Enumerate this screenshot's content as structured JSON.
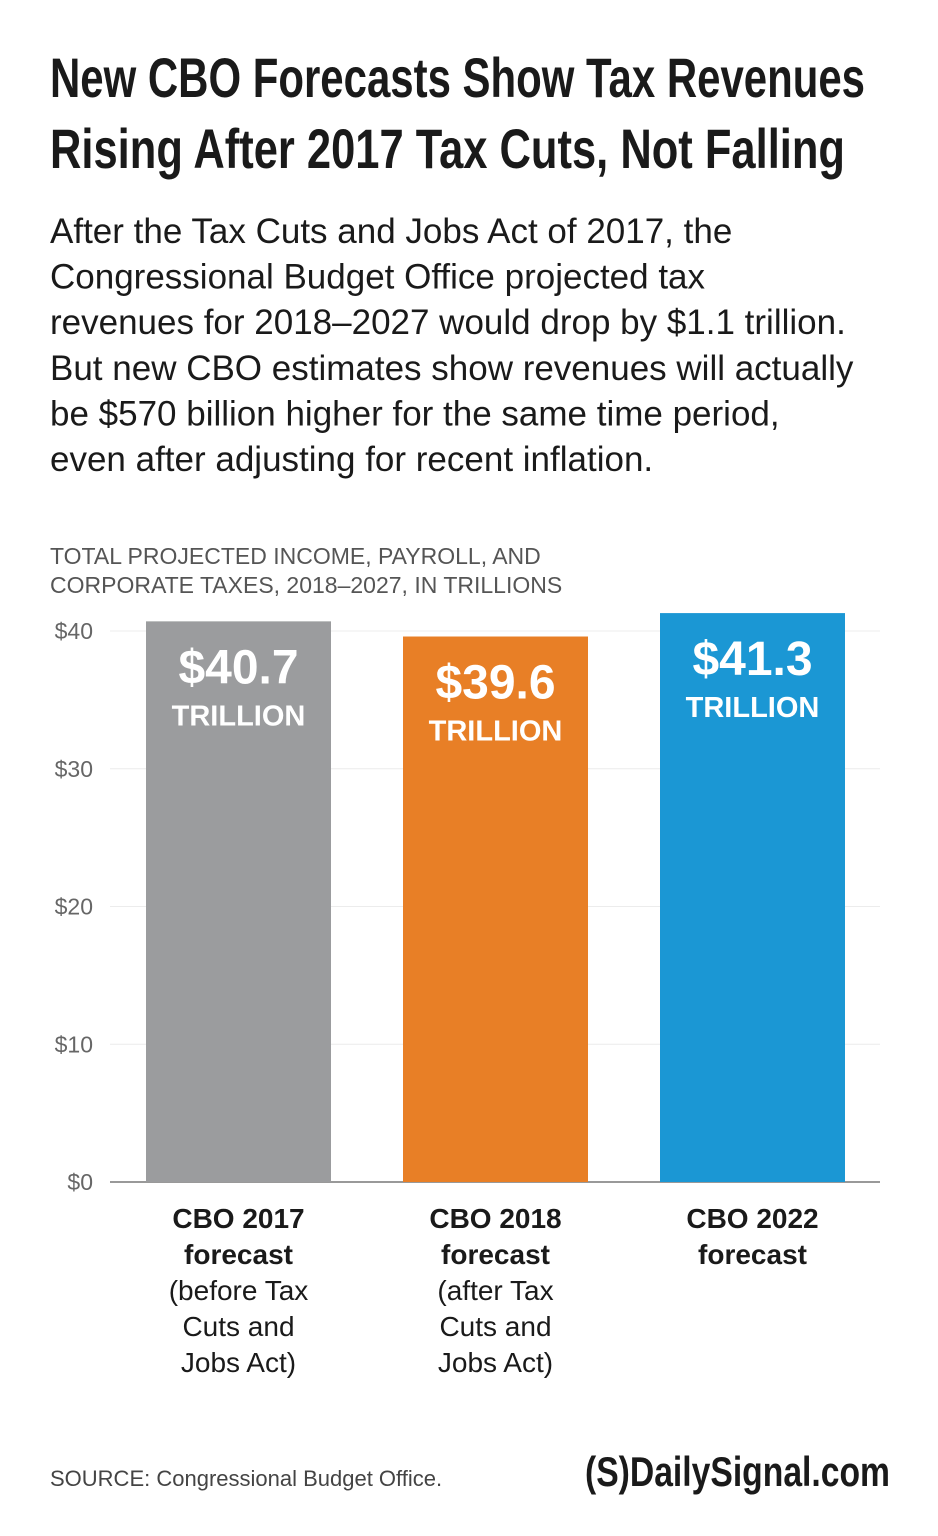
{
  "chart_data": {
    "type": "bar",
    "title": [
      "New CBO Forecasts Show Tax Revenues",
      "Rising After 2017 Tax Cuts, Not Falling"
    ],
    "subtitle": [
      "After the Tax Cuts and Jobs Act of 2017, the",
      "Congressional Budget Office projected tax",
      "revenues for 2018–2027 would drop by $1.1 trillion.",
      "But new CBO estimates show revenues will actually",
      "be $570 billion higher for the same time period,",
      "even after adjusting for recent inflation."
    ],
    "y_axis_label": [
      "TOTAL PROJECTED INCOME, PAYROLL, AND",
      "CORPORATE TAXES, 2018–2027, IN TRILLIONS"
    ],
    "categories": [
      "CBO 2017 forecast",
      "CBO 2018 forecast",
      "CBO 2022 forecast"
    ],
    "category_notes": [
      "(before Tax Cuts and Jobs Act)",
      "(after Tax Cuts and Jobs Act)",
      null
    ],
    "values": [
      40.7,
      39.6,
      41.3
    ],
    "value_labels": [
      "$40.7",
      "$39.6",
      "$41.3"
    ],
    "value_unit": "TRILLION",
    "colors": [
      "#9b9c9e",
      "#e87f26",
      "#1b97d4"
    ],
    "ylim": [
      0,
      40
    ],
    "yticks": [
      {
        "value": 0,
        "label": "$0"
      },
      {
        "value": 10,
        "label": "$10"
      },
      {
        "value": 20,
        "label": "$20"
      },
      {
        "value": 30,
        "label": "$30"
      },
      {
        "value": 40,
        "label": "$40"
      }
    ],
    "grid": true,
    "source": "SOURCE: Congressional Budget Office.",
    "logo": "(S)DailySignal.com"
  }
}
